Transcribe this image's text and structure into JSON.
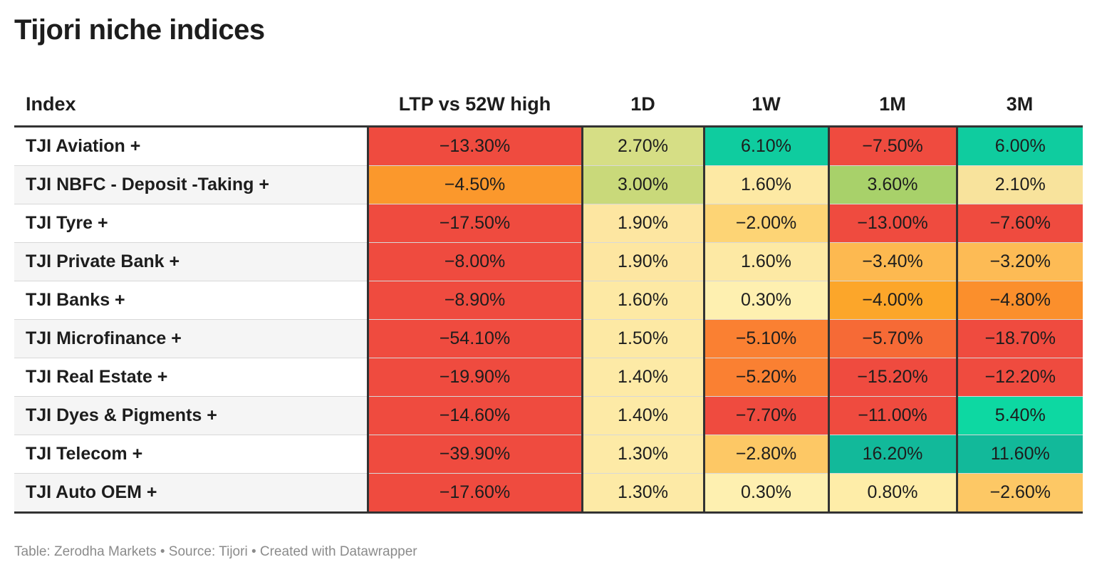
{
  "title": "Tijori niche indices",
  "footer": "Table: Zerodha Markets • Source: Tijori • Created with Datawrapper",
  "chart_data": {
    "type": "table",
    "columns": [
      "Index",
      "LTP vs 52W high",
      "1D",
      "1W",
      "1M",
      "3M"
    ],
    "rows": [
      {
        "name": "TJI Aviation +",
        "values": [
          "−13.30%",
          "2.70%",
          "6.10%",
          "−7.50%",
          "6.00%"
        ],
        "colors": [
          "#ef4b3f",
          "#d6de85",
          "#0fcc9f",
          "#ef4b3f",
          "#0fcc9f"
        ]
      },
      {
        "name": "TJI NBFC - Deposit -Taking +",
        "values": [
          "−4.50%",
          "3.00%",
          "1.60%",
          "3.60%",
          "2.10%"
        ],
        "colors": [
          "#fb982c",
          "#c9d97a",
          "#fde9a4",
          "#a8d16a",
          "#f8e39c"
        ]
      },
      {
        "name": "TJI Tyre +",
        "values": [
          "−17.50%",
          "1.90%",
          "−2.00%",
          "−13.00%",
          "−7.60%"
        ],
        "colors": [
          "#ef4b3f",
          "#fde6a1",
          "#fdd475",
          "#ef4b3f",
          "#ef4b3f"
        ]
      },
      {
        "name": "TJI Private Bank +",
        "values": [
          "−8.00%",
          "1.90%",
          "1.60%",
          "−3.40%",
          "−3.20%"
        ],
        "colors": [
          "#ef4b3f",
          "#fde6a1",
          "#fde9a4",
          "#fdb950",
          "#fdbb55"
        ]
      },
      {
        "name": "TJI Banks +",
        "values": [
          "−8.90%",
          "1.60%",
          "0.30%",
          "−4.00%",
          "−4.80%"
        ],
        "colors": [
          "#ef4b3f",
          "#fde9a4",
          "#fef0b0",
          "#fca62a",
          "#fb8f2c"
        ]
      },
      {
        "name": "TJI Microfinance +",
        "values": [
          "−54.10%",
          "1.50%",
          "−5.10%",
          "−5.70%",
          "−18.70%"
        ],
        "colors": [
          "#ef4b3f",
          "#fde9a4",
          "#fa8032",
          "#f66a36",
          "#ef4b3f"
        ]
      },
      {
        "name": "TJI Real Estate +",
        "values": [
          "−19.90%",
          "1.40%",
          "−5.20%",
          "−15.20%",
          "−12.20%"
        ],
        "colors": [
          "#ef4b3f",
          "#fdeaa6",
          "#fa8032",
          "#ef4b3f",
          "#ef4b3f"
        ]
      },
      {
        "name": "TJI Dyes & Pigments +",
        "values": [
          "−14.60%",
          "1.40%",
          "−7.70%",
          "−11.00%",
          "5.40%"
        ],
        "colors": [
          "#ef4b3f",
          "#fdeaa6",
          "#ef4b3f",
          "#ef4b3f",
          "#0dd8a2"
        ]
      },
      {
        "name": "TJI Telecom +",
        "values": [
          "−39.90%",
          "1.30%",
          "−2.80%",
          "16.20%",
          "11.60%"
        ],
        "colors": [
          "#ef4b3f",
          "#fdeaa6",
          "#fdc865",
          "#12b99a",
          "#12b99a"
        ]
      },
      {
        "name": "TJI Auto OEM +",
        "values": [
          "−17.60%",
          "1.30%",
          "0.30%",
          "0.80%",
          "−2.60%"
        ],
        "colors": [
          "#ef4b3f",
          "#fdeaa6",
          "#fef0b0",
          "#feeda8",
          "#fdc865"
        ]
      }
    ]
  }
}
